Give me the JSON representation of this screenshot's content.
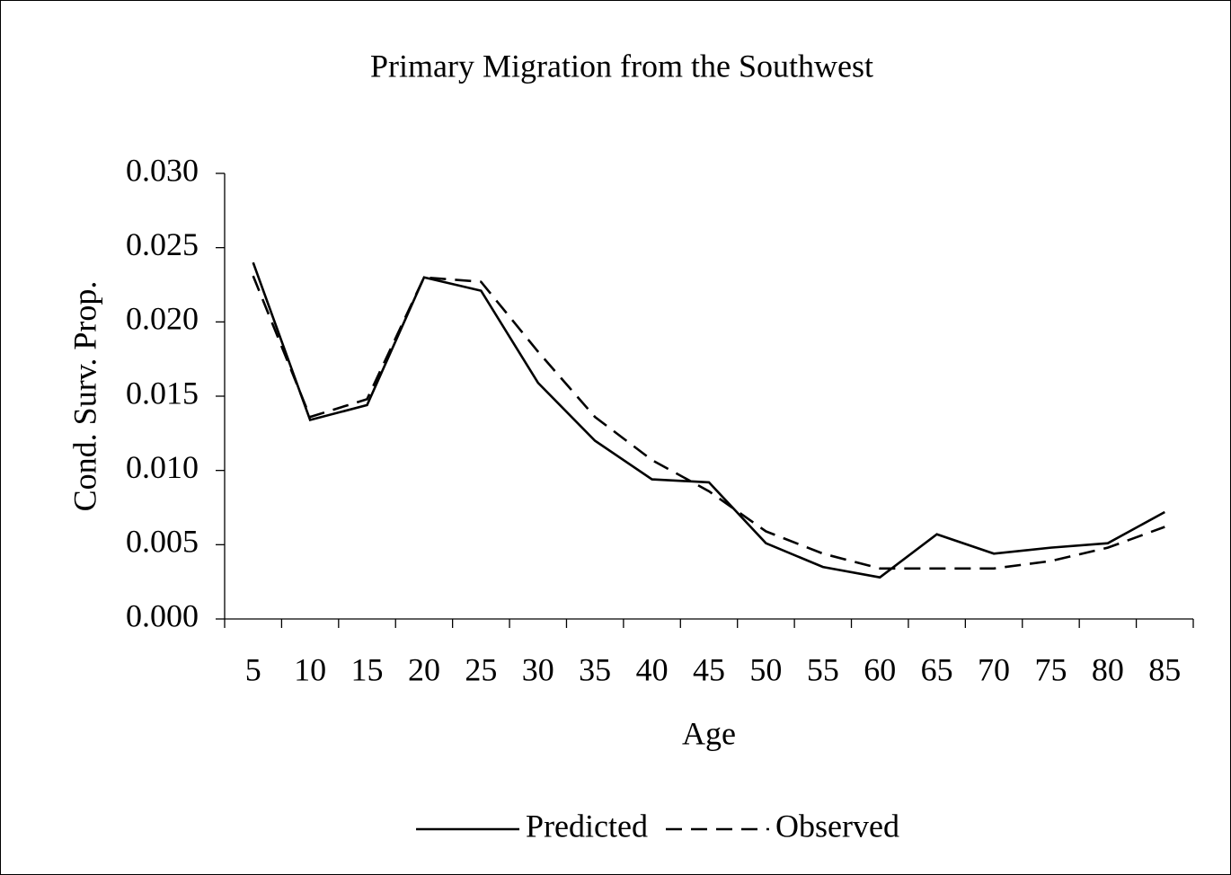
{
  "chart_data": {
    "type": "line",
    "title": "Primary Migration from the Southwest",
    "x_label": "Age",
    "y_label": "Cond. Surv. Prop.",
    "categories": [
      "5",
      "10",
      "15",
      "20",
      "25",
      "30",
      "35",
      "40",
      "45",
      "50",
      "55",
      "60",
      "65",
      "70",
      "75",
      "80",
      "85"
    ],
    "series": [
      {
        "name": "Predicted",
        "color": "#000000",
        "style": "solid",
        "values": [
          0.024,
          0.0134,
          0.0144,
          0.023,
          0.0221,
          0.0159,
          0.012,
          0.0094,
          0.0092,
          0.0051,
          0.0035,
          0.0028,
          0.0057,
          0.0044,
          0.0048,
          0.0051,
          0.0072
        ]
      },
      {
        "name": "Observed",
        "color": "#000000",
        "style": "dashed",
        "values": [
          0.0231,
          0.0136,
          0.0148,
          0.023,
          0.0227,
          0.018,
          0.0136,
          0.0107,
          0.0086,
          0.0059,
          0.0044,
          0.0034,
          0.0034,
          0.0034,
          0.0039,
          0.0048,
          0.0062
        ]
      }
    ],
    "ylim": [
      0,
      0.03
    ],
    "yticks": [
      {
        "value": 0,
        "label": "0.000"
      },
      0.005,
      {
        "value": 0.01,
        "label": "0.010"
      },
      0.015,
      {
        "value": 0.02,
        "label": "0.020"
      },
      0.025,
      {
        "value": 0.03,
        "label": "0.030"
      }
    ],
    "grid": false,
    "legend": "bottom"
  }
}
